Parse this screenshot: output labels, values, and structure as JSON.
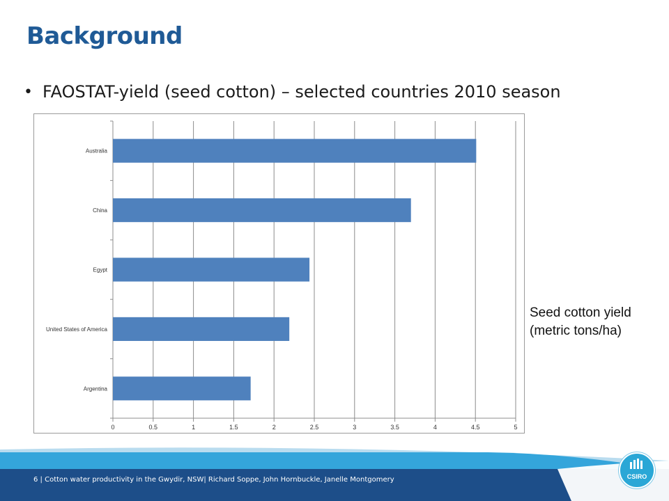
{
  "slide": {
    "title": "Background",
    "bullet": "FAOSTAT-yield (seed cotton) – selected countries 2010 season",
    "side_label_line1": "Seed cotton yield",
    "side_label_line2": "(metric tons/ha)"
  },
  "footer": {
    "text": "6  |  Cotton water productivity in the Gwydir, NSW| Richard Soppe, John Hornbuckle, Janelle Montgomery",
    "logo_text": "CSIRO"
  },
  "colors": {
    "title": "#1f5a96",
    "bar": "#4f81bd",
    "footer_dark": "#1d4e89",
    "footer_light": "#34a5db"
  },
  "chart_data": {
    "type": "bar",
    "orientation": "horizontal",
    "categories": [
      "Australia",
      "China",
      "Egypt",
      "United States of America",
      "Argentina"
    ],
    "values": [
      4.51,
      3.7,
      2.44,
      2.19,
      1.71
    ],
    "xlim": [
      0,
      5
    ],
    "xticks": [
      "0",
      "0.5",
      "1",
      "1.5",
      "2",
      "2.5",
      "3",
      "3.5",
      "4",
      "4.5",
      "5"
    ],
    "grid": "vertical",
    "legend": "none"
  }
}
